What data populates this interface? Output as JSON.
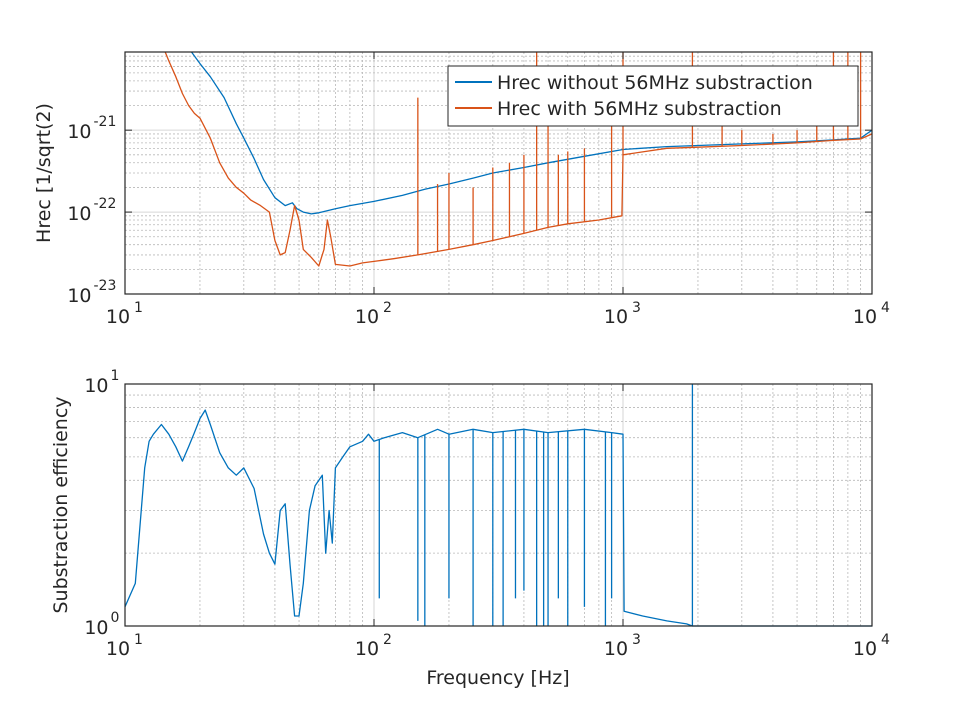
{
  "chart_data": [
    {
      "type": "line",
      "xlabel": "",
      "ylabel": "Hrec [1/sqrt(2)",
      "xscale": "log",
      "yscale": "log",
      "xlim": [
        10,
        10000
      ],
      "ylim": [
        1e-23,
        9e-21
      ],
      "grid": true,
      "legend_position": "top-right",
      "xticks": [
        {
          "value": 10,
          "base": "10",
          "exp": "1"
        },
        {
          "value": 100,
          "base": "10",
          "exp": "2"
        },
        {
          "value": 1000,
          "base": "10",
          "exp": "3"
        },
        {
          "value": 10000,
          "base": "10",
          "exp": "4"
        }
      ],
      "yticks": [
        {
          "value": 1e-23,
          "base": "10",
          "exp": "-23"
        },
        {
          "value": 1e-22,
          "base": "10",
          "exp": "-22"
        },
        {
          "value": 1e-21,
          "base": "10",
          "exp": "-21"
        }
      ],
      "series": [
        {
          "name": "Hrec without 56MHz substraction",
          "color": "#0072BD",
          "points": [
            [
              18.5,
              9e-21
            ],
            [
              20,
              6.5e-21
            ],
            [
              22,
              4.5e-21
            ],
            [
              25,
              2.5e-21
            ],
            [
              28,
              1.2e-21
            ],
            [
              30,
              8e-22
            ],
            [
              33,
              4.5e-22
            ],
            [
              36,
              2.5e-22
            ],
            [
              40,
              1.5e-22
            ],
            [
              44,
              1.2e-22
            ],
            [
              47,
              1.3e-22
            ],
            [
              49,
              1.1e-22
            ],
            [
              52,
              1e-22
            ],
            [
              56,
              9.5e-23
            ],
            [
              60,
              9.8e-23
            ],
            [
              70,
              1.1e-22
            ],
            [
              80,
              1.2e-22
            ],
            [
              100,
              1.35e-22
            ],
            [
              130,
              1.6e-22
            ],
            [
              160,
              1.9e-22
            ],
            [
              200,
              2.2e-22
            ],
            [
              250,
              2.6e-22
            ],
            [
              300,
              3e-22
            ],
            [
              400,
              3.5e-22
            ],
            [
              500,
              4e-22
            ],
            [
              700,
              4.8e-22
            ],
            [
              1000,
              5.8e-22
            ],
            [
              1500,
              6.3e-22
            ],
            [
              2000,
              6.5e-22
            ],
            [
              3000,
              6.8e-22
            ],
            [
              5000,
              7.2e-22
            ],
            [
              7000,
              7.6e-22
            ],
            [
              9000,
              8e-22
            ],
            [
              10000,
              1e-21
            ]
          ]
        },
        {
          "name": "Hrec with 56MHz substraction",
          "color": "#D95319",
          "points": [
            [
              14.5,
              9e-21
            ],
            [
              15,
              7e-21
            ],
            [
              16,
              4.5e-21
            ],
            [
              17,
              2.8e-21
            ],
            [
              18,
              2e-21
            ],
            [
              19,
              1.6e-21
            ],
            [
              20,
              1.4e-21
            ],
            [
              22,
              8e-22
            ],
            [
              24,
              4e-22
            ],
            [
              26,
              2.6e-22
            ],
            [
              28,
              2e-22
            ],
            [
              30,
              1.7e-22
            ],
            [
              32,
              1.4e-22
            ],
            [
              35,
              1.2e-22
            ],
            [
              38,
              1e-22
            ],
            [
              40,
              4.5e-23
            ],
            [
              42,
              3e-23
            ],
            [
              44,
              3.2e-23
            ],
            [
              46,
              6e-23
            ],
            [
              48,
              1.2e-22
            ],
            [
              50,
              8e-23
            ],
            [
              52,
              3.5e-23
            ],
            [
              56,
              2.8e-23
            ],
            [
              60,
              2.2e-23
            ],
            [
              63,
              3.5e-23
            ],
            [
              65,
              8e-23
            ],
            [
              67,
              5e-23
            ],
            [
              70,
              2.3e-23
            ],
            [
              80,
              2.2e-23
            ],
            [
              90,
              2.4e-23
            ],
            [
              100,
              2.5e-23
            ],
            [
              120,
              2.7e-23
            ],
            [
              150,
              3e-23
            ],
            [
              200,
              3.5e-23
            ],
            [
              250,
              4e-23
            ],
            [
              300,
              4.5e-23
            ],
            [
              400,
              5.5e-23
            ],
            [
              500,
              6.5e-23
            ],
            [
              600,
              7.2e-23
            ],
            [
              800,
              8e-23
            ],
            [
              990,
              9e-23
            ],
            [
              1000,
              5e-22
            ],
            [
              1500,
              6e-22
            ],
            [
              2000,
              6.2e-22
            ],
            [
              3000,
              6.5e-22
            ],
            [
              5000,
              7e-22
            ],
            [
              7000,
              7.5e-22
            ],
            [
              9000,
              7.8e-22
            ],
            [
              10000,
              9e-22
            ]
          ],
          "spikes": [
            [
              150,
              2.5e-21
            ],
            [
              180,
              2.2e-22
            ],
            [
              200,
              3e-22
            ],
            [
              250,
              2e-22
            ],
            [
              300,
              3.5e-22
            ],
            [
              350,
              4e-22
            ],
            [
              400,
              5e-22
            ],
            [
              450,
              9e-21
            ],
            [
              500,
              3e-21
            ],
            [
              550,
              5e-22
            ],
            [
              600,
              5.5e-22
            ],
            [
              700,
              6e-22
            ],
            [
              900,
              3e-21
            ],
            [
              1000,
              9e-21
            ],
            [
              1900,
              9e-21
            ],
            [
              2500,
              1.2e-21
            ],
            [
              3000,
              1e-21
            ],
            [
              4000,
              9e-22
            ],
            [
              5000,
              1e-21
            ],
            [
              6000,
              2e-21
            ],
            [
              7000,
              9e-21
            ],
            [
              8000,
              9e-21
            ],
            [
              9000,
              9e-21
            ]
          ]
        }
      ]
    },
    {
      "type": "line",
      "xlabel": "Frequency [Hz]",
      "ylabel": "Substraction efficiency",
      "xscale": "log",
      "yscale": "log",
      "xlim": [
        10,
        10000
      ],
      "ylim": [
        1,
        10
      ],
      "grid": true,
      "xticks": [
        {
          "value": 10,
          "base": "10",
          "exp": "1"
        },
        {
          "value": 100,
          "base": "10",
          "exp": "2"
        },
        {
          "value": 1000,
          "base": "10",
          "exp": "3"
        },
        {
          "value": 10000,
          "base": "10",
          "exp": "4"
        }
      ],
      "yticks": [
        {
          "value": 1,
          "base": "10",
          "exp": "0"
        },
        {
          "value": 10,
          "base": "10",
          "exp": "1"
        }
      ],
      "series": [
        {
          "name": "",
          "color": "#0072BD",
          "points": [
            [
              10,
              1.2
            ],
            [
              11,
              1.5
            ],
            [
              12,
              4.5
            ],
            [
              12.5,
              5.8
            ],
            [
              13,
              6.2
            ],
            [
              14,
              6.8
            ],
            [
              15,
              6.2
            ],
            [
              16,
              5.5
            ],
            [
              17,
              4.8
            ],
            [
              18,
              5.5
            ],
            [
              19,
              6.3
            ],
            [
              20,
              7.2
            ],
            [
              21,
              7.8
            ],
            [
              22,
              6.8
            ],
            [
              24,
              5.2
            ],
            [
              26,
              4.5
            ],
            [
              28,
              4.2
            ],
            [
              30,
              4.5
            ],
            [
              33,
              3.7
            ],
            [
              36,
              2.4
            ],
            [
              38,
              2.0
            ],
            [
              40,
              1.8
            ],
            [
              42,
              3.0
            ],
            [
              44,
              3.2
            ],
            [
              46,
              1.8
            ],
            [
              48,
              1.1
            ],
            [
              50,
              1.1
            ],
            [
              52,
              1.5
            ],
            [
              55,
              3.0
            ],
            [
              58,
              3.8
            ],
            [
              62,
              4.2
            ],
            [
              64,
              2.0
            ],
            [
              66,
              3.0
            ],
            [
              68,
              2.2
            ],
            [
              70,
              4.5
            ],
            [
              75,
              5.0
            ],
            [
              80,
              5.5
            ],
            [
              90,
              5.8
            ],
            [
              95,
              6.2
            ],
            [
              100,
              5.8
            ],
            [
              110,
              6.0
            ],
            [
              130,
              6.3
            ],
            [
              150,
              6.0
            ],
            [
              180,
              6.5
            ],
            [
              200,
              6.2
            ],
            [
              250,
              6.5
            ],
            [
              300,
              6.3
            ],
            [
              400,
              6.5
            ],
            [
              500,
              6.3
            ],
            [
              700,
              6.5
            ],
            [
              900,
              6.3
            ],
            [
              1000,
              6.2
            ],
            [
              1010,
              1.15
            ],
            [
              1200,
              1.1
            ],
            [
              1500,
              1.05
            ],
            [
              1800,
              1.02
            ],
            [
              1900,
              1.0
            ],
            [
              2000,
              1.0
            ],
            [
              3000,
              1.0
            ],
            [
              5000,
              1.0
            ],
            [
              10000,
              1.0
            ]
          ],
          "dips": [
            [
              105,
              1.3
            ],
            [
              150,
              1.05
            ],
            [
              160,
              1.0
            ],
            [
              200,
              1.3
            ],
            [
              250,
              1.0
            ],
            [
              300,
              1.0
            ],
            [
              330,
              1.0
            ],
            [
              370,
              1.3
            ],
            [
              400,
              1.4
            ],
            [
              450,
              1.0
            ],
            [
              480,
              1.0
            ],
            [
              500,
              1.0
            ],
            [
              550,
              1.3
            ],
            [
              600,
              1.0
            ],
            [
              700,
              1.2
            ],
            [
              850,
              1.0
            ],
            [
              900,
              1.3
            ]
          ],
          "spikes": [
            [
              1900,
              10
            ]
          ]
        }
      ]
    }
  ]
}
